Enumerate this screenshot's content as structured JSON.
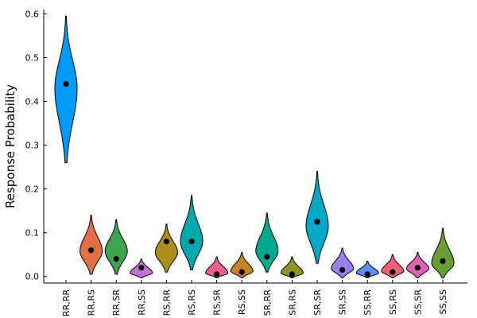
{
  "chart_data": {
    "type": "violin",
    "title": "",
    "xlabel": "",
    "ylabel": "Response Probability",
    "ylim": [
      -0.015,
      0.61
    ],
    "yticks": [
      0.0,
      0.1,
      0.2,
      0.3,
      0.4,
      0.5,
      0.6
    ],
    "ytick_labels": [
      "0.0",
      "0.1",
      "0.2",
      "0.3",
      "0.4",
      "0.5",
      "0.6"
    ],
    "grid": false,
    "legend": "none",
    "categories": [
      "RR,RR",
      "RR,RS",
      "RR,SR",
      "RR,SS",
      "RS,RR",
      "RS,RS",
      "RS,SR",
      "RS,SS",
      "SR,RR",
      "SR,RS",
      "SR,SR",
      "SR,SS",
      "SS,RR",
      "SS,RS",
      "SS,SR",
      "SS,SS"
    ],
    "observed": [
      0.44,
      0.06,
      0.04,
      0.02,
      0.08,
      0.08,
      0.005,
      0.01,
      0.045,
      0.005,
      0.125,
      0.015,
      0.005,
      0.01,
      0.02,
      0.035
    ],
    "distributions": [
      {
        "min": 0.26,
        "max": 0.595,
        "center": 0.43
      },
      {
        "min": 0.005,
        "max": 0.14,
        "center": 0.058
      },
      {
        "min": 0.005,
        "max": 0.13,
        "center": 0.058
      },
      {
        "min": -0.003,
        "max": 0.04,
        "center": 0.008
      },
      {
        "min": 0.01,
        "max": 0.12,
        "center": 0.055
      },
      {
        "min": 0.015,
        "max": 0.185,
        "center": 0.08
      },
      {
        "min": -0.003,
        "max": 0.045,
        "center": 0.008
      },
      {
        "min": -0.003,
        "max": 0.055,
        "center": 0.012
      },
      {
        "min": 0.01,
        "max": 0.145,
        "center": 0.058
      },
      {
        "min": -0.003,
        "max": 0.045,
        "center": 0.008
      },
      {
        "min": 0.03,
        "max": 0.24,
        "center": 0.115
      },
      {
        "min": -0.003,
        "max": 0.065,
        "center": 0.018
      },
      {
        "min": -0.003,
        "max": 0.035,
        "center": 0.008
      },
      {
        "min": -0.003,
        "max": 0.05,
        "center": 0.012
      },
      {
        "min": -0.003,
        "max": 0.055,
        "center": 0.018
      },
      {
        "min": -0.003,
        "max": 0.11,
        "center": 0.03
      }
    ],
    "colors": [
      "#009AFA",
      "#E36F47",
      "#3EA44E",
      "#C371D2",
      "#AC8E18",
      "#00A9AD",
      "#ED5E93",
      "#C68225",
      "#00A98D",
      "#8E971D",
      "#00A9C8",
      "#9B7FE9",
      "#618DF6",
      "#F05F73",
      "#DD64B5",
      "#6B9E32"
    ]
  }
}
